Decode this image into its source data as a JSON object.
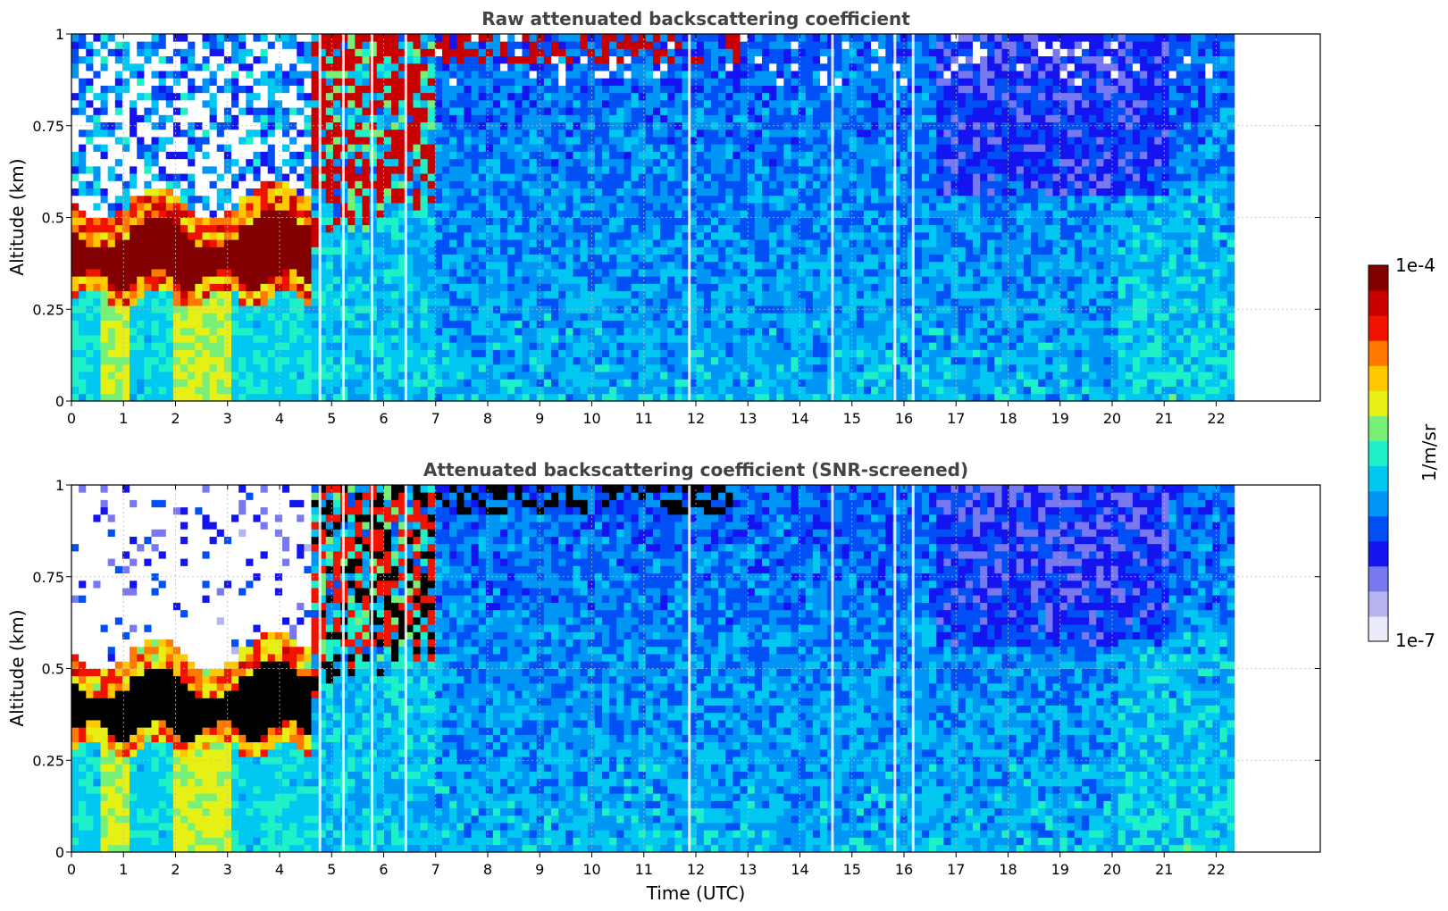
{
  "chart_data": [
    {
      "type": "heatmap",
      "title": "Raw attenuated backscattering coefficient",
      "xlabel": "",
      "ylabel": "Altitude (km)",
      "xlim": [
        0,
        24
      ],
      "ylim": [
        0,
        1
      ],
      "x_ticks": [
        "0",
        "1",
        "2",
        "3",
        "4",
        "5",
        "6",
        "7",
        "8",
        "9",
        "10",
        "11",
        "12",
        "13",
        "14",
        "15",
        "16",
        "17",
        "18",
        "19",
        "20",
        "21",
        "22"
      ],
      "y_ticks": [
        "0",
        "0.25",
        "0.5",
        "0.75",
        "1"
      ],
      "data_end_time": 22.35,
      "grid": true,
      "features": [
        {
          "desc": "boundary layer",
          "time": [
            0,
            4.6
          ],
          "altitude": [
            0.27,
            0.53
          ],
          "level": "high"
        },
        {
          "desc": "rising layer",
          "time": [
            4.6,
            6.9
          ],
          "altitude": [
            0.45,
            1.0
          ],
          "level": "high"
        },
        {
          "desc": "noisy background above",
          "time": [
            0,
            4.6
          ],
          "altitude": [
            0.55,
            1.0
          ],
          "level": "noise"
        },
        {
          "desc": "near-surface enhancement",
          "time": [
            0.5,
            3.0
          ],
          "altitude": [
            0.0,
            0.3
          ],
          "level": "medium"
        }
      ]
    },
    {
      "type": "heatmap",
      "title": "Attenuated backscattering coefficient (SNR-screened)",
      "xlabel": "Time (UTC)",
      "ylabel": "Altitude (km)",
      "xlim": [
        0,
        24
      ],
      "ylim": [
        0,
        1
      ],
      "x_ticks": [
        "0",
        "1",
        "2",
        "3",
        "4",
        "5",
        "6",
        "7",
        "8",
        "9",
        "10",
        "11",
        "12",
        "13",
        "14",
        "15",
        "16",
        "17",
        "18",
        "19",
        "20",
        "21",
        "22"
      ],
      "y_ticks": [
        "0",
        "0.25",
        "0.5",
        "0.75",
        "1"
      ],
      "data_end_time": 22.35,
      "grid": true,
      "features": [
        {
          "desc": "boundary layer (saturated)",
          "time": [
            0,
            4.6
          ],
          "altitude": [
            0.27,
            0.53
          ],
          "level": "saturated"
        },
        {
          "desc": "screened region",
          "time": [
            0,
            4.6
          ],
          "altitude": [
            0.55,
            1.0
          ],
          "level": "masked"
        }
      ]
    }
  ],
  "colorbar": {
    "max_label": "1e-4",
    "min_label": "1e-7",
    "unit_label": "1/m/sr",
    "colors": [
      "#ebebfa",
      "#b4b4f0",
      "#7878f0",
      "#1414f0",
      "#0050f5",
      "#0096f5",
      "#00c8f0",
      "#1ef0c8",
      "#78f078",
      "#e6f014",
      "#ffc800",
      "#ff7800",
      "#f01400",
      "#c80000",
      "#820000"
    ]
  }
}
